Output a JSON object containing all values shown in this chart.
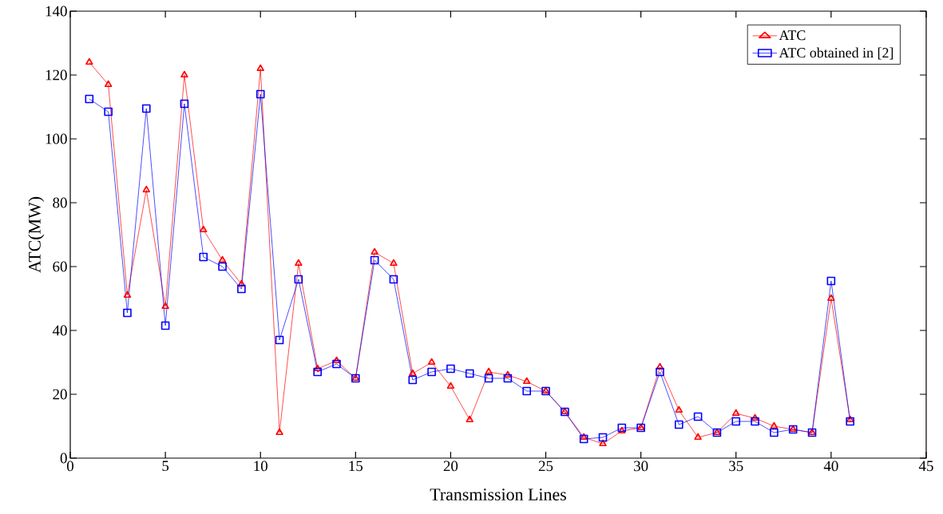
{
  "chart_data": {
    "type": "line",
    "xlabel": "Transmission Lines",
    "ylabel": "ATC(MW)",
    "x": [
      1,
      2,
      3,
      4,
      5,
      6,
      7,
      8,
      9,
      10,
      11,
      12,
      13,
      14,
      15,
      16,
      17,
      18,
      19,
      20,
      21,
      22,
      23,
      24,
      25,
      26,
      27,
      28,
      29,
      30,
      31,
      32,
      33,
      34,
      35,
      36,
      37,
      38,
      39,
      40,
      41
    ],
    "series": [
      {
        "name": "ATC",
        "color": "#ff0000",
        "marker": "triangle",
        "values": [
          124,
          117,
          51,
          84,
          47.5,
          120,
          71.5,
          62,
          54.5,
          122,
          8,
          61,
          28,
          30.5,
          25,
          64.5,
          61,
          26.5,
          30,
          22.5,
          12,
          27,
          26,
          24,
          21,
          14.5,
          6.5,
          4.5,
          8.5,
          9.5,
          28.5,
          15,
          6.5,
          8,
          14,
          12.5,
          10,
          9,
          8,
          50,
          12
        ]
      },
      {
        "name": "ATC obtained in [2]",
        "color": "#0000ff",
        "marker": "square",
        "values": [
          112.5,
          108.5,
          45.5,
          109.5,
          41.5,
          111,
          63,
          60,
          53,
          114,
          37,
          56,
          27,
          29.5,
          25,
          62,
          56,
          24.5,
          27,
          28,
          26.5,
          25,
          25,
          21,
          21,
          14.5,
          6,
          6.5,
          9.5,
          9.5,
          27,
          10.5,
          13,
          8,
          11.5,
          11.5,
          8,
          9,
          8,
          55.5,
          11.5
        ]
      }
    ],
    "xlim": [
      0,
      45
    ],
    "ylim": [
      0,
      140
    ],
    "xticks": [
      0,
      5,
      10,
      15,
      20,
      25,
      30,
      35,
      40,
      45
    ],
    "yticks": [
      0,
      20,
      40,
      60,
      80,
      100,
      120,
      140
    ],
    "grid": false,
    "legend": "top right",
    "line_style": "solid"
  }
}
